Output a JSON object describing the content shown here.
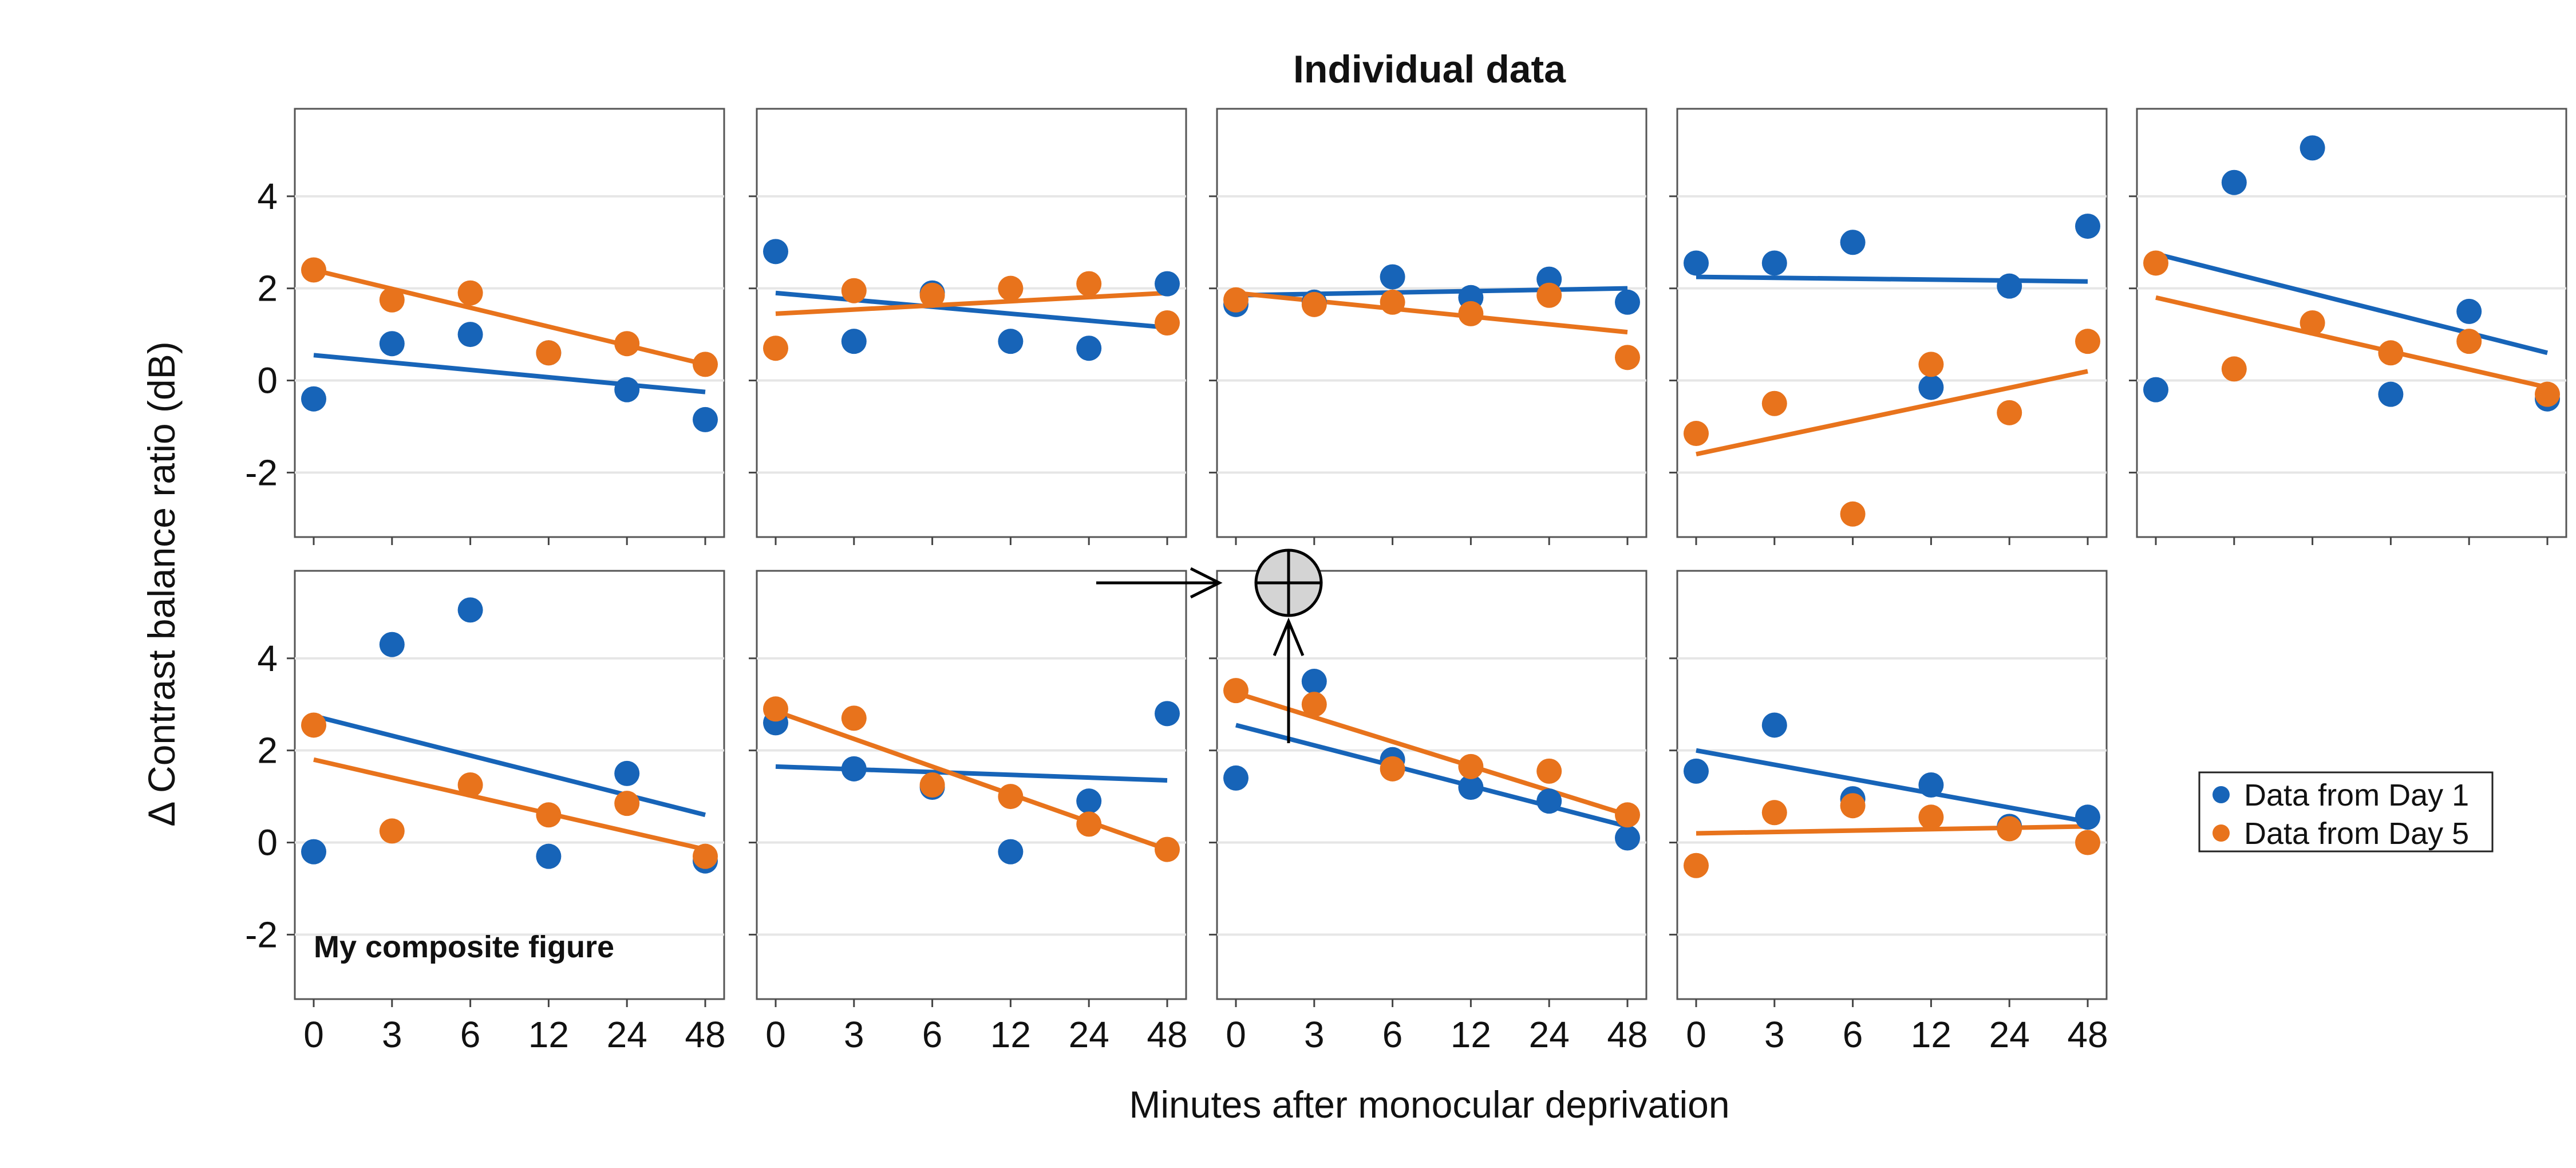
{
  "chart_data": {
    "type": "scatter",
    "title": "Individual data",
    "xlabel": "Minutes after monocular deprivation",
    "ylabel": "Δ Contrast balance ratio (dB)",
    "x_categories": [
      "0",
      "3",
      "6",
      "12",
      "24",
      "48"
    ],
    "y_ticks": [
      4,
      2,
      0,
      -2
    ],
    "ylim": [
      -3.4,
      5.9
    ],
    "layout": {
      "rows": 2,
      "cols": 5,
      "panels_in_last_row": 4
    },
    "grid": "horizontal",
    "legend_position": "right",
    "series": [
      {
        "name": "Data from Day 1",
        "color": "#1764b8"
      },
      {
        "name": "Data from Day 5",
        "color": "#e8731c"
      }
    ],
    "panels": [
      {
        "day1": [
          -0.4,
          0.8,
          1.0,
          0.6,
          -0.2,
          -0.85
        ],
        "day1_fit": [
          0.55,
          -0.25
        ],
        "day5": [
          2.4,
          1.75,
          1.9,
          0.6,
          0.8,
          0.35
        ],
        "day5_fit": [
          2.4,
          0.35
        ]
      },
      {
        "day1": [
          2.8,
          0.85,
          1.9,
          0.85,
          0.7,
          2.1
        ],
        "day1_fit": [
          1.9,
          1.15
        ],
        "day5": [
          0.7,
          1.95,
          1.85,
          2.0,
          2.1,
          1.25
        ],
        "day5_fit": [
          1.45,
          1.9
        ]
      },
      {
        "day1": [
          1.65,
          1.7,
          2.25,
          1.8,
          2.2,
          1.7
        ],
        "day1_fit": [
          1.85,
          2.0
        ],
        "day5": [
          1.75,
          1.65,
          1.7,
          1.45,
          1.85,
          0.5
        ],
        "day5_fit": [
          1.9,
          1.05
        ]
      },
      {
        "day1": [
          2.55,
          2.55,
          3.0,
          -0.15,
          2.05,
          3.35
        ],
        "day1_fit": [
          2.25,
          2.15
        ],
        "day5": [
          -1.15,
          -0.5,
          -2.9,
          0.35,
          -0.7,
          0.85
        ],
        "day5_fit": [
          -1.6,
          0.2
        ]
      },
      {
        "day1": [
          -0.2,
          4.3,
          5.05,
          -0.3,
          1.5,
          -0.4
        ],
        "day1_fit": [
          2.75,
          0.6
        ],
        "day5": [
          2.55,
          0.25,
          1.25,
          0.6,
          0.85,
          -0.3
        ],
        "day5_fit": [
          1.8,
          -0.15
        ]
      },
      {
        "day1": [
          -0.2,
          4.3,
          5.05,
          -0.3,
          1.5,
          -0.4
        ],
        "day1_fit": [
          2.75,
          0.6
        ],
        "day5": [
          2.55,
          0.25,
          1.25,
          0.6,
          0.85,
          -0.3
        ],
        "day5_fit": [
          1.8,
          -0.15
        ]
      },
      {
        "day1": [
          2.6,
          1.6,
          1.2,
          -0.2,
          0.9,
          2.8
        ],
        "day1_fit": [
          1.65,
          1.35
        ],
        "day5": [
          2.9,
          2.7,
          1.25,
          1.0,
          0.4,
          -0.15
        ],
        "day5_fit": [
          2.85,
          -0.15
        ]
      },
      {
        "day1": [
          1.4,
          3.5,
          1.8,
          1.2,
          0.9,
          0.1
        ],
        "day1_fit": [
          2.55,
          0.35
        ],
        "day5": [
          3.3,
          3.0,
          1.6,
          1.65,
          1.55,
          0.6
        ],
        "day5_fit": [
          3.25,
          0.6
        ]
      },
      {
        "day1": [
          1.55,
          2.55,
          0.95,
          1.25,
          0.35,
          0.55
        ],
        "day1_fit": [
          2.0,
          0.45
        ],
        "day5": [
          -0.5,
          0.65,
          0.8,
          0.55,
          0.3,
          0.0
        ],
        "day5_fit": [
          0.2,
          0.35
        ]
      }
    ],
    "annotation": "My composite figure"
  }
}
